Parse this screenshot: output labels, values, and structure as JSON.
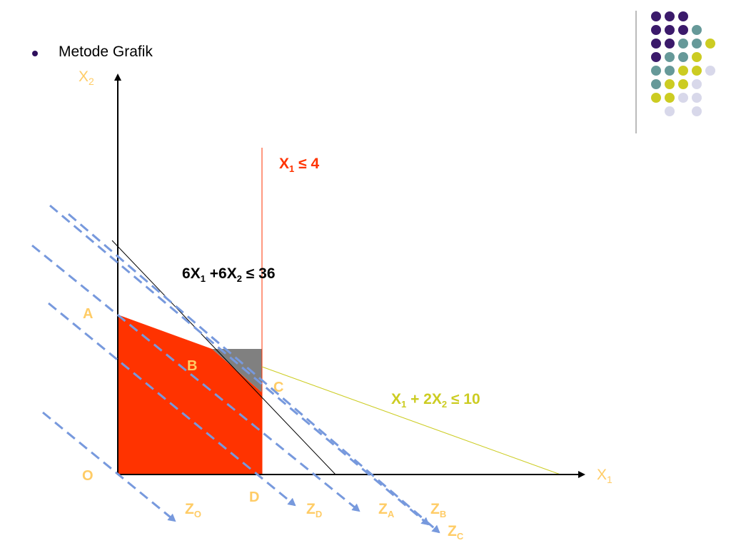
{
  "slide": {
    "bullet_text": "Metode Grafik"
  },
  "axes": {
    "x_label": "X",
    "x_sub": "1",
    "y_label": "X",
    "y_sub": "2"
  },
  "points": {
    "O": "O",
    "A": "A",
    "B": "B",
    "C": "C",
    "D": "D"
  },
  "constraints": {
    "c1": {
      "lhs": "X",
      "sub": "1",
      "rest": " ≤ 4",
      "color": "#ff3300"
    },
    "c2": {
      "a": "6X",
      "a_sub": "1",
      "b": " +6X",
      "b_sub": "2",
      "rest": " ≤ 36",
      "color": "#000000"
    },
    "c3": {
      "a": "X",
      "a_sub": "1",
      "b": " + 2X",
      "b_sub": "2",
      "rest": " ≤ 10",
      "color": "#cccc22"
    }
  },
  "objective_lines": [
    {
      "label": "Z",
      "sub": "O"
    },
    {
      "label": "Z",
      "sub": "D"
    },
    {
      "label": "Z",
      "sub": "A"
    },
    {
      "label": "Z",
      "sub": "B"
    },
    {
      "label": "Z",
      "sub": "C"
    }
  ],
  "colors": {
    "feasible_region": "#ff3300",
    "cut_region": "#808080",
    "label_yellow": "#ffcc66",
    "objective_dash": "#7799dd",
    "axis": "#000000"
  },
  "decoration": {
    "dot_colors": [
      "#3b1a6b",
      "#669999",
      "#cccc22",
      "#d8d8ea"
    ]
  }
}
